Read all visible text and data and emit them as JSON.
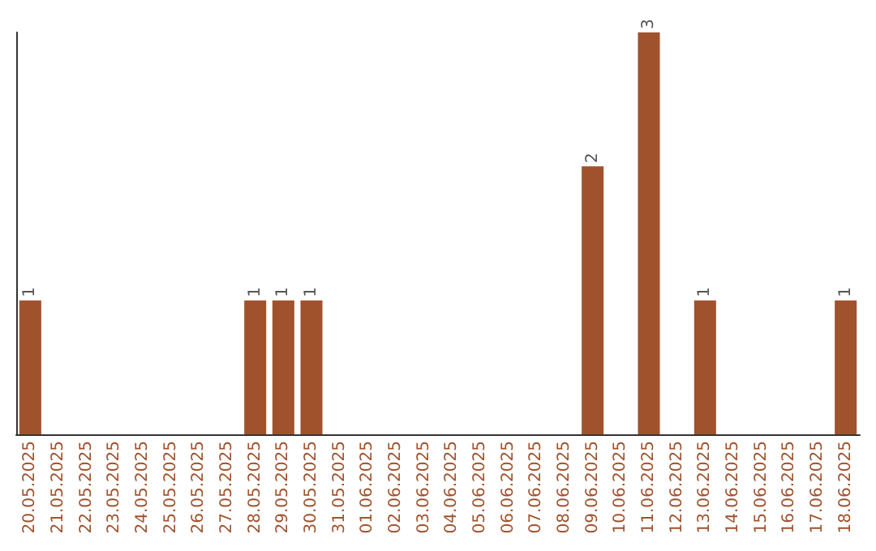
{
  "chart_data": {
    "type": "bar",
    "categories": [
      "20.05.2025",
      "21.05.2025",
      "22.05.2025",
      "23.05.2025",
      "24.05.2025",
      "25.05.2025",
      "26.05.2025",
      "27.05.2025",
      "28.05.2025",
      "29.05.2025",
      "30.05.2025",
      "31.05.2025",
      "01.06.2025",
      "02.06.2025",
      "03.06.2025",
      "04.06.2025",
      "05.06.2025",
      "06.06.2025",
      "07.06.2025",
      "08.06.2025",
      "09.06.2025",
      "10.06.2025",
      "11.06.2025",
      "12.06.2025",
      "13.06.2025",
      "14.06.2025",
      "15.06.2025",
      "16.06.2025",
      "17.06.2025",
      "18.06.2025"
    ],
    "values": [
      1,
      0,
      0,
      0,
      0,
      0,
      0,
      0,
      1,
      1,
      1,
      0,
      0,
      0,
      0,
      0,
      0,
      0,
      0,
      0,
      2,
      0,
      3,
      0,
      1,
      0,
      0,
      0,
      0,
      1
    ],
    "value_labels": [
      "1",
      null,
      null,
      null,
      null,
      null,
      null,
      null,
      "1",
      "1",
      "1",
      null,
      null,
      null,
      null,
      null,
      null,
      null,
      null,
      null,
      "2",
      null,
      "3",
      null,
      "1",
      null,
      null,
      null,
      null,
      "1"
    ],
    "color": "#a0522d",
    "ylim": [
      0,
      3
    ],
    "tick_labels": "x"
  }
}
